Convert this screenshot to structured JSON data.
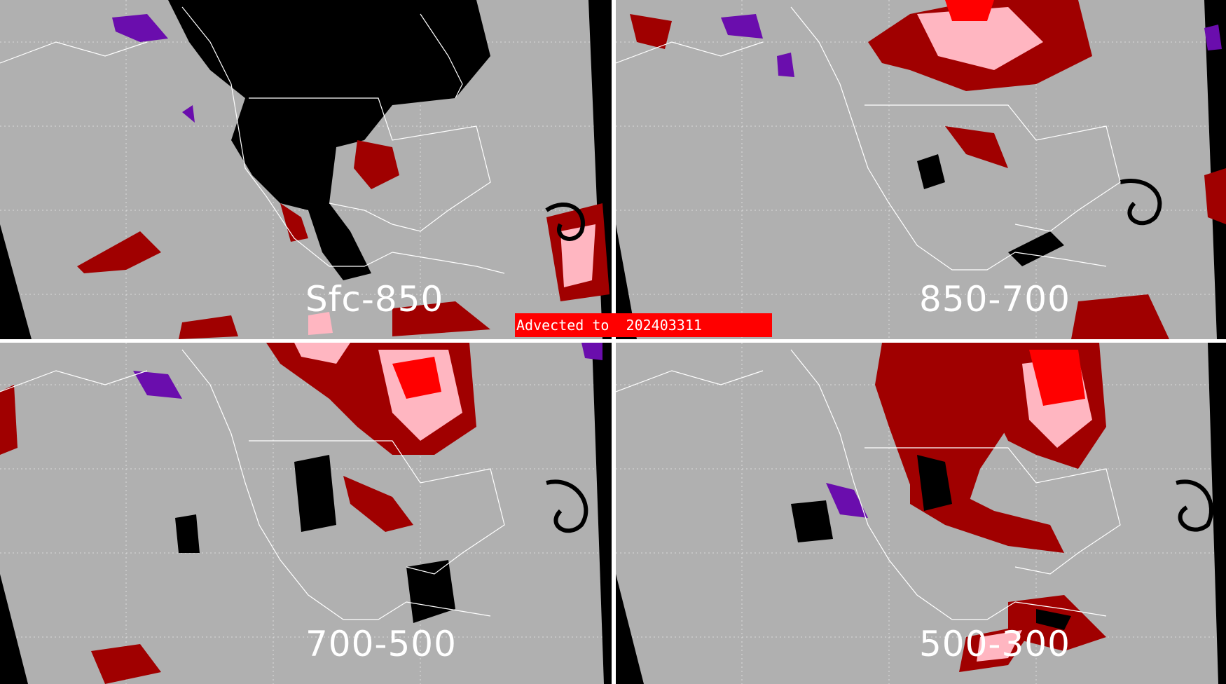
{
  "panels": [
    {
      "id": "sfc-850",
      "label": "Sfc-850"
    },
    {
      "id": "850-700",
      "label": "850-700"
    },
    {
      "id": "700-500",
      "label": "700-500"
    },
    {
      "id": "500-300",
      "label": "500-300"
    }
  ],
  "banner": {
    "text": "Advected to  202403311"
  },
  "colors": {
    "background": "#b0b0b0",
    "no_data": "#000000",
    "dark_red": "#a00000",
    "pink": "#ffb6c1",
    "bright_red": "#ff0000",
    "purple": "#6a0dad",
    "coastline": "#ffffff",
    "gridline": "#ffffff"
  }
}
